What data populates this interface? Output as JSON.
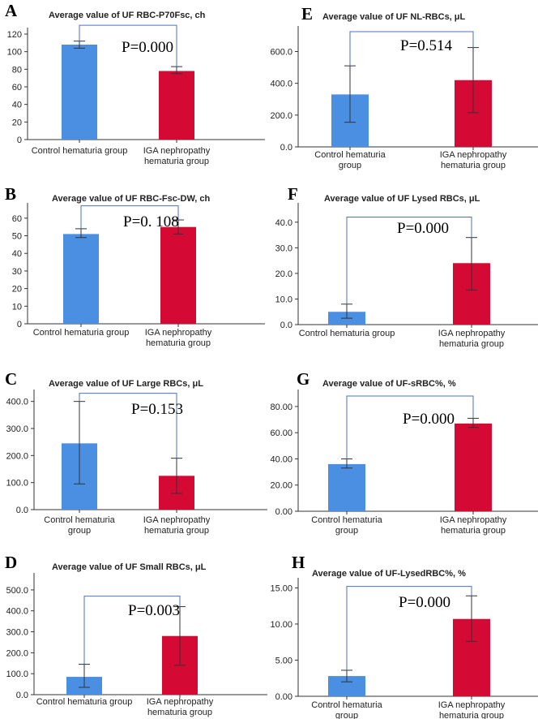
{
  "figure": {
    "background": "#ffffff",
    "axis_color": "#333333",
    "bracket_color": "#4a72c4",
    "errorbar_color": "#333333"
  },
  "chart_data": [
    {
      "type": "bar",
      "panel": "A",
      "title": "Average value of  UF RBC-P70Fsc, ch",
      "categories": [
        [
          "Control hematuria group"
        ],
        [
          "IGA nephropathy",
          "hematuria group"
        ]
      ],
      "values": [
        108,
        78
      ],
      "err_low": [
        104,
        75
      ],
      "err_high": [
        112,
        83
      ],
      "colors": [
        "#4b8fe3",
        "#d40a35"
      ],
      "ylim": [
        0,
        120
      ],
      "yticks": [
        "0",
        "20",
        "40",
        "60",
        "80",
        "100",
        "120"
      ],
      "ytick_values": [
        0,
        20,
        40,
        60,
        80,
        100,
        120
      ],
      "bracket": {
        "top": 130,
        "p_text": "P=0.000"
      }
    },
    {
      "type": "bar",
      "panel": "E",
      "title": "Average value of UF NL-RBCs, μL",
      "categories": [
        [
          "Control hematuria",
          "group"
        ],
        [
          "IGA nephropathy",
          "hematuria group"
        ]
      ],
      "values": [
        330,
        420
      ],
      "err_low": [
        155,
        215
      ],
      "err_high": [
        510,
        625
      ],
      "colors": [
        "#4b8fe3",
        "#d40a35"
      ],
      "ylim": [
        0,
        720
      ],
      "yticks": [
        "0.0",
        "200.0",
        "400.0",
        "600.0"
      ],
      "ytick_values": [
        0,
        200,
        400,
        600
      ],
      "bracket": {
        "top": 725,
        "p_text": "P=0.514"
      }
    },
    {
      "type": "bar",
      "panel": "B",
      "title": "Average value of  UF RBC-Fsc-DW, ch",
      "categories": [
        [
          "Control hematuria group"
        ],
        [
          "IGA nephropathy",
          "hematuria group"
        ]
      ],
      "values": [
        51,
        55
      ],
      "err_low": [
        49,
        51
      ],
      "err_high": [
        54,
        59
      ],
      "colors": [
        "#4b8fe3",
        "#d40a35"
      ],
      "ylim": [
        0,
        65
      ],
      "yticks": [
        "0",
        "10",
        "20",
        "30",
        "40",
        "50",
        "60"
      ],
      "ytick_values": [
        0,
        10,
        20,
        30,
        40,
        50,
        60
      ],
      "bracket": {
        "top": 67,
        "p_text": "P=0. 108"
      }
    },
    {
      "type": "bar",
      "panel": "F",
      "title": "Average value of UF Lysed RBCs, μL",
      "categories": [
        [
          "Control hematuria group"
        ],
        [
          "IGA nephropathy",
          "hematuria group"
        ]
      ],
      "values": [
        5,
        24
      ],
      "err_low": [
        2.5,
        13.5
      ],
      "err_high": [
        8,
        34
      ],
      "colors": [
        "#4b8fe3",
        "#d40a35"
      ],
      "ylim": [
        0,
        45
      ],
      "yticks": [
        "0.0",
        "10.0",
        "20.0",
        "30.0",
        "40.0"
      ],
      "ytick_values": [
        0,
        10,
        20,
        30,
        40
      ],
      "bracket": {
        "top": 42,
        "p_text": "P=0.000"
      }
    },
    {
      "type": "bar",
      "panel": "C",
      "title": "Average value of  UF Large RBCs, μL",
      "categories": [
        [
          "Control hematuria",
          "group"
        ],
        [
          "IGA nephropathy",
          "hematuria group"
        ]
      ],
      "values": [
        245,
        125
      ],
      "err_low": [
        95,
        60
      ],
      "err_high": [
        400,
        190
      ],
      "colors": [
        "#4b8fe3",
        "#d40a35"
      ],
      "ylim": [
        0,
        420
      ],
      "yticks": [
        "0.0",
        "100.0",
        "200.0",
        "300.0",
        "400.0"
      ],
      "ytick_values": [
        0,
        100,
        200,
        300,
        400
      ],
      "bracket": {
        "top": 430,
        "p_text": "P=0.153"
      }
    },
    {
      "type": "bar",
      "panel": "G",
      "title": "Average value of UF-sRBC%, %",
      "categories": [
        [
          "Control hematuria",
          "group"
        ],
        [
          "IGA nephropathy",
          "hematuria group"
        ]
      ],
      "values": [
        36,
        67
      ],
      "err_low": [
        33,
        64
      ],
      "err_high": [
        40,
        71
      ],
      "colors": [
        "#4b8fe3",
        "#d40a35"
      ],
      "ylim": [
        0,
        88
      ],
      "yticks": [
        "0.00",
        "20.00",
        "40.00",
        "60.00",
        "80.00"
      ],
      "ytick_values": [
        0,
        20,
        40,
        60,
        80
      ],
      "bracket": {
        "top": 88,
        "p_text": "P=0.000"
      }
    },
    {
      "type": "bar",
      "panel": "D",
      "title": "Average value of UF Small RBCs, μL",
      "categories": [
        [
          "Control hematuria group"
        ],
        [
          "IGA nephropathy",
          "hematuria group"
        ]
      ],
      "values": [
        85,
        280
      ],
      "err_low": [
        35,
        140
      ],
      "err_high": [
        145,
        420
      ],
      "colors": [
        "#4b8fe3",
        "#d40a35"
      ],
      "ylim": [
        0,
        550
      ],
      "yticks": [
        "0.0",
        "100.0",
        "200.0",
        "300.0",
        "400.0",
        "500.0"
      ],
      "ytick_values": [
        0,
        100,
        200,
        300,
        400,
        500
      ],
      "bracket": {
        "top": 470,
        "p_text": "P=0.003"
      }
    },
    {
      "type": "bar",
      "panel": "H",
      "title": "Average value of  UF-LysedRBC%, %",
      "categories": [
        [
          "Control hematuria",
          "group"
        ],
        [
          "IGA nephropathy",
          "hematuria group"
        ]
      ],
      "values": [
        2.8,
        10.7
      ],
      "err_low": [
        2.0,
        7.6
      ],
      "err_high": [
        3.6,
        13.9
      ],
      "colors": [
        "#4b8fe3",
        "#d40a35"
      ],
      "ylim": [
        0,
        15.5
      ],
      "yticks": [
        "0.00",
        "5.00",
        "10.00",
        "15.00"
      ],
      "ytick_values": [
        0,
        5,
        10,
        15
      ],
      "bracket": {
        "top": 15.2,
        "p_text": "P=0.000"
      }
    }
  ]
}
